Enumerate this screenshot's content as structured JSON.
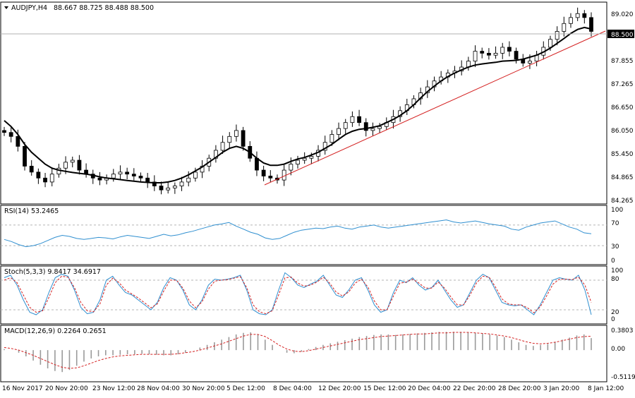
{
  "chart_data": [
    {
      "type": "candlestick",
      "title": "AUDJPY,H4",
      "ohlc_label": "88.667 88.725 88.488 88.500",
      "last_price_label": "88.500",
      "ylim": [
        84.2,
        89.15
      ],
      "y_ticks": [
        "89.020",
        "87.855",
        "87.265",
        "86.650",
        "86.050",
        "85.450",
        "84.865",
        "84.265"
      ],
      "x_labels": [
        "16 Nov 2017",
        "20 Nov 20:00",
        "23 Nov 12:00",
        "28 Nov 04:00",
        "30 Nov 20:00",
        "5 Dec 12:00",
        "8 Dec 04:00",
        "12 Dec 20:00",
        "15 Dec 12:00",
        "20 Dec 04:00",
        "22 Dec 20:00",
        "28 Dec 20:00",
        "3 Jan 20:00",
        "8 Jan 12:00"
      ],
      "close_series": [
        85.95,
        85.85,
        85.6,
        85.1,
        84.95,
        84.8,
        84.7,
        84.9,
        85.05,
        85.2,
        85.25,
        85.0,
        84.9,
        84.8,
        84.75,
        84.8,
        84.9,
        84.95,
        84.9,
        84.85,
        84.8,
        84.7,
        84.6,
        84.5,
        84.55,
        84.6,
        84.7,
        84.8,
        84.95,
        85.1,
        85.3,
        85.5,
        85.7,
        85.85,
        86.0,
        85.6,
        85.3,
        85.0,
        84.85,
        84.8,
        84.75,
        85.0,
        85.15,
        85.25,
        85.3,
        85.35,
        85.5,
        85.7,
        85.9,
        86.05,
        86.2,
        86.35,
        86.2,
        86.0,
        86.05,
        86.1,
        86.2,
        86.35,
        86.5,
        86.65,
        86.8,
        86.95,
        87.1,
        87.25,
        87.35,
        87.45,
        87.5,
        87.6,
        87.75,
        88.0,
        87.95,
        87.9,
        87.95,
        88.1,
        88.0,
        87.8,
        87.7,
        87.75,
        87.9,
        88.1,
        88.3,
        88.5,
        88.7,
        88.85,
        88.95,
        88.85,
        88.5
      ],
      "ma_series": [
        86.25,
        86.1,
        85.9,
        85.65,
        85.45,
        85.3,
        85.15,
        85.05,
        85.0,
        84.97,
        84.94,
        84.92,
        84.9,
        84.87,
        84.83,
        84.8,
        84.78,
        84.76,
        84.74,
        84.72,
        84.7,
        84.69,
        84.68,
        84.68,
        84.7,
        84.74,
        84.8,
        84.88,
        84.98,
        85.08,
        85.2,
        85.32,
        85.45,
        85.55,
        85.6,
        85.55,
        85.45,
        85.3,
        85.18,
        85.12,
        85.12,
        85.15,
        85.22,
        85.28,
        85.32,
        85.38,
        85.45,
        85.55,
        85.65,
        85.78,
        85.9,
        85.98,
        86.03,
        86.05,
        86.08,
        86.12,
        86.2,
        86.28,
        86.38,
        86.5,
        86.65,
        86.82,
        86.98,
        87.12,
        87.25,
        87.36,
        87.45,
        87.53,
        87.6,
        87.65,
        87.68,
        87.7,
        87.72,
        87.75,
        87.76,
        87.77,
        87.8,
        87.85,
        87.9,
        87.98,
        88.08,
        88.2,
        88.32,
        88.45,
        88.55,
        88.6,
        88.56
      ]
    },
    {
      "type": "line",
      "title": "RSI(14) 53.2465",
      "y_ticks": [
        "100",
        "70",
        "30",
        "0"
      ],
      "ylim": [
        0,
        100
      ],
      "levels": [
        70,
        30
      ],
      "values": [
        42,
        38,
        32,
        28,
        30,
        34,
        40,
        46,
        50,
        48,
        44,
        42,
        44,
        46,
        45,
        43,
        47,
        50,
        48,
        46,
        44,
        48,
        52,
        49,
        51,
        55,
        58,
        62,
        66,
        70,
        72,
        75,
        68,
        62,
        56,
        52,
        45,
        42,
        44,
        50,
        56,
        60,
        62,
        64,
        63,
        66,
        68,
        64,
        62,
        66,
        68,
        70,
        66,
        64,
        66,
        68,
        70,
        72,
        74,
        76,
        78,
        80,
        76,
        74,
        76,
        78,
        75,
        72,
        70,
        68,
        62,
        60,
        66,
        70,
        74,
        76,
        78,
        72,
        66,
        62,
        55,
        53
      ]
    },
    {
      "type": "line",
      "title": "Stoch(5,3,3) 9.8417 34.6917",
      "y_ticks": [
        "100",
        "80",
        "20",
        "0"
      ],
      "ylim": [
        0,
        100
      ],
      "levels": [
        80,
        20
      ],
      "series": [
        {
          "values": [
            85,
            90,
            70,
            40,
            15,
            10,
            20,
            55,
            85,
            92,
            88,
            60,
            25,
            12,
            15,
            40,
            80,
            88,
            70,
            55,
            50,
            40,
            30,
            20,
            35,
            65,
            85,
            80,
            60,
            30,
            20,
            40,
            70,
            82,
            80,
            82,
            85,
            90,
            60,
            20,
            12,
            10,
            20,
            60,
            95,
            85,
            70,
            65,
            72,
            78,
            90,
            70,
            50,
            45,
            60,
            80,
            85,
            60,
            30,
            15,
            20,
            55,
            80,
            75,
            85,
            70,
            60,
            65,
            80,
            60,
            40,
            25,
            30,
            55,
            80,
            92,
            85,
            60,
            35,
            30,
            28,
            30,
            20,
            10,
            30,
            55,
            80,
            85,
            82,
            80,
            90,
            60,
            10
          ]
        },
        {
          "values": [
            80,
            85,
            75,
            50,
            25,
            15,
            18,
            45,
            75,
            88,
            86,
            65,
            35,
            18,
            16,
            32,
            70,
            84,
            75,
            60,
            52,
            44,
            34,
            24,
            32,
            58,
            80,
            80,
            64,
            38,
            24,
            36,
            62,
            78,
            80,
            81,
            84,
            87,
            65,
            30,
            16,
            12,
            18,
            50,
            85,
            86,
            74,
            68,
            70,
            76,
            86,
            74,
            56,
            48,
            56,
            74,
            82,
            66,
            38,
            20,
            20,
            48,
            74,
            76,
            82,
            74,
            64,
            64,
            76,
            64,
            46,
            30,
            30,
            50,
            74,
            88,
            86,
            66,
            42,
            32,
            30,
            30,
            24,
            14,
            26,
            48,
            72,
            82,
            82,
            81,
            86,
            70,
            35
          ]
        }
      ]
    },
    {
      "type": "bar",
      "title": "MACD(12,26,9) 0.2264 0.2651",
      "y_ticks": [
        "0.3803",
        "0.00",
        "-0.5119"
      ],
      "ylim": [
        -0.5119,
        0.3803
      ],
      "histogram": [
        0.02,
        0.0,
        -0.05,
        -0.12,
        -0.2,
        -0.28,
        -0.35,
        -0.4,
        -0.42,
        -0.38,
        -0.3,
        -0.22,
        -0.16,
        -0.12,
        -0.1,
        -0.1,
        -0.09,
        -0.08,
        -0.08,
        -0.07,
        -0.08,
        -0.09,
        -0.1,
        -0.1,
        -0.08,
        -0.05,
        0.0,
        0.05,
        0.1,
        0.15,
        0.2,
        0.25,
        0.3,
        0.33,
        0.34,
        0.3,
        0.2,
        0.1,
        0.0,
        -0.05,
        -0.06,
        -0.03,
        0.02,
        0.06,
        0.1,
        0.13,
        0.16,
        0.19,
        0.22,
        0.25,
        0.27,
        0.29,
        0.3,
        0.3,
        0.29,
        0.3,
        0.31,
        0.32,
        0.33,
        0.34,
        0.35,
        0.35,
        0.35,
        0.35,
        0.34,
        0.33,
        0.32,
        0.3,
        0.28,
        0.25,
        0.2,
        0.15,
        0.1,
        0.08,
        0.1,
        0.12,
        0.16,
        0.2,
        0.24,
        0.28,
        0.3,
        0.23
      ],
      "signal": [
        0.05,
        0.03,
        0.0,
        -0.05,
        -0.1,
        -0.16,
        -0.22,
        -0.28,
        -0.33,
        -0.35,
        -0.34,
        -0.3,
        -0.25,
        -0.2,
        -0.16,
        -0.13,
        -0.11,
        -0.1,
        -0.09,
        -0.08,
        -0.08,
        -0.08,
        -0.08,
        -0.08,
        -0.07,
        -0.05,
        -0.03,
        0.0,
        0.04,
        0.08,
        0.12,
        0.17,
        0.22,
        0.27,
        0.3,
        0.3,
        0.26,
        0.18,
        0.09,
        0.02,
        -0.02,
        -0.03,
        -0.01,
        0.02,
        0.05,
        0.08,
        0.11,
        0.14,
        0.17,
        0.2,
        0.22,
        0.24,
        0.26,
        0.27,
        0.28,
        0.29,
        0.3,
        0.31,
        0.31,
        0.32,
        0.33,
        0.33,
        0.34,
        0.34,
        0.34,
        0.33,
        0.32,
        0.31,
        0.29,
        0.27,
        0.24,
        0.2,
        0.16,
        0.13,
        0.12,
        0.13,
        0.15,
        0.18,
        0.21,
        0.24,
        0.26,
        0.265
      ]
    }
  ],
  "colors": {
    "bull": "#ffffff",
    "bear": "#000000",
    "ma": "#000000",
    "trendline": "#d42020",
    "rsi": "#2f8fd0",
    "stoch_main": "#2f8fd0",
    "stoch_signal": "#d42020",
    "macd_hist": "#9a9a9a",
    "macd_signal": "#d42020",
    "grid": "#b5b5b5"
  }
}
